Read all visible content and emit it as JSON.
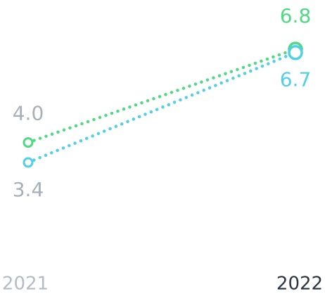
{
  "chart_data": {
    "type": "slope",
    "categories": [
      "2021",
      "2022"
    ],
    "series": [
      {
        "color": "#4fd982",
        "values": [
          4.0,
          6.8
        ],
        "value_labels": [
          "4.0",
          "6.8"
        ]
      },
      {
        "color": "#4fd0e6",
        "values": [
          3.4,
          6.7
        ],
        "value_labels": [
          "3.4",
          "6.7"
        ]
      }
    ]
  }
}
